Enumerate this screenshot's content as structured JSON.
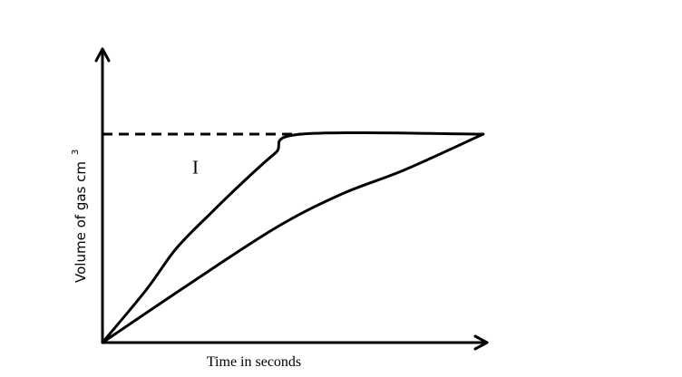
{
  "chart_data": {
    "type": "line",
    "title": "",
    "xlabel": "Time in seconds",
    "ylabel": "Volume of gas cm",
    "ylabel_superscript": "3",
    "xlim": [
      0,
      100
    ],
    "ylim": [
      0,
      100
    ],
    "grid": false,
    "legend": "none",
    "max_volume_reference": {
      "y": 100,
      "style": "dashed",
      "x_end": 46
    },
    "series": [
      {
        "name": "I",
        "color": "#000000",
        "points": [
          [
            0,
            0
          ],
          [
            10,
            25
          ],
          [
            17,
            45
          ],
          [
            25,
            62
          ],
          [
            33,
            78
          ],
          [
            40,
            91
          ],
          [
            46,
            100
          ],
          [
            88,
            100
          ]
        ]
      },
      {
        "name": "",
        "color": "#000000",
        "points": [
          [
            0,
            0
          ],
          [
            20,
            28
          ],
          [
            40,
            55
          ],
          [
            55,
            71
          ],
          [
            70,
            83
          ],
          [
            88,
            100
          ]
        ]
      }
    ]
  }
}
